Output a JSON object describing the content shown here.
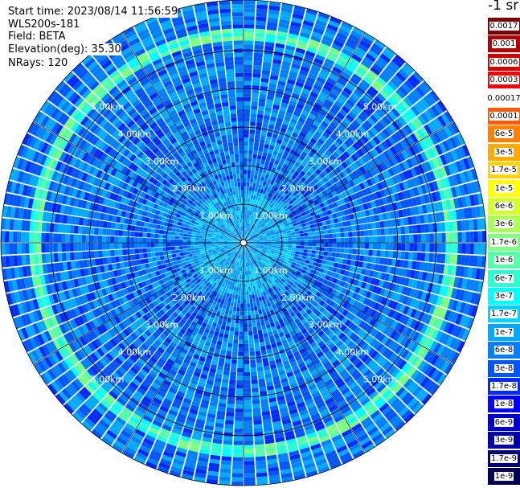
{
  "header": {
    "start_time": "Start time: 2023/08/14 11:56:59",
    "instrument": "WLS200s-181",
    "field": "Field: BETA",
    "elevation": "Elevation(deg): 35.30",
    "nrays": "NRays: 120"
  },
  "colorbar": {
    "unit": "-1 sr",
    "levels": [
      {
        "label": "0.0017",
        "color": "#7f0000"
      },
      {
        "label": "0.001",
        "color": "#b20000"
      },
      {
        "label": "0.0006",
        "color": "#d40000"
      },
      {
        "label": "0.0003",
        "color": "#f40404"
      },
      {
        "label": "0.00017",
        "color": "#ffffff"
      },
      {
        "label": "0.0001",
        "color": "#ff5a00"
      },
      {
        "label": "6e-5",
        "color": "#ff7f00"
      },
      {
        "label": "3e-5",
        "color": "#ffaa00"
      },
      {
        "label": "1.7e-5",
        "color": "#ffd400"
      },
      {
        "label": "1e-5",
        "color": "#ffff00"
      },
      {
        "label": "6e-6",
        "color": "#d4ff2a"
      },
      {
        "label": "3e-6",
        "color": "#aaff55"
      },
      {
        "label": "1.7e-6",
        "color": "#7fff7f"
      },
      {
        "label": "1e-6",
        "color": "#55ffaa"
      },
      {
        "label": "6e-7",
        "color": "#2affd4"
      },
      {
        "label": "3e-7",
        "color": "#00ffff"
      },
      {
        "label": "1.7e-7",
        "color": "#00d4ff"
      },
      {
        "label": "1e-7",
        "color": "#00aaff"
      },
      {
        "label": "6e-8",
        "color": "#007fff"
      },
      {
        "label": "3e-8",
        "color": "#0055ff"
      },
      {
        "label": "1.7e-8",
        "color": "#002aff"
      },
      {
        "label": "1e-8",
        "color": "#0000ff"
      },
      {
        "label": "6e-9",
        "color": "#0000d4"
      },
      {
        "label": "3e-9",
        "color": "#0000aa"
      },
      {
        "label": "1.7e-9",
        "color": "#00007f"
      },
      {
        "label": "1e-9",
        "color": "#000055"
      }
    ]
  },
  "chart_data": {
    "type": "heatmap",
    "projection": "polar (PPI scan)",
    "rays": 120,
    "range_ring_labels": [
      "1.00km",
      "2.00km",
      "3.00km",
      "4.00km",
      "5.00km"
    ],
    "range_rings_km": [
      1,
      2,
      3,
      4,
      5
    ],
    "max_range_km": 6.3,
    "background_level": "3e-8",
    "enhanced_ring_km": [
      5.3,
      5.6
    ],
    "enhanced_ring_level": "1.7e-6",
    "near_range_level": "1.7e-7",
    "grid": true
  }
}
